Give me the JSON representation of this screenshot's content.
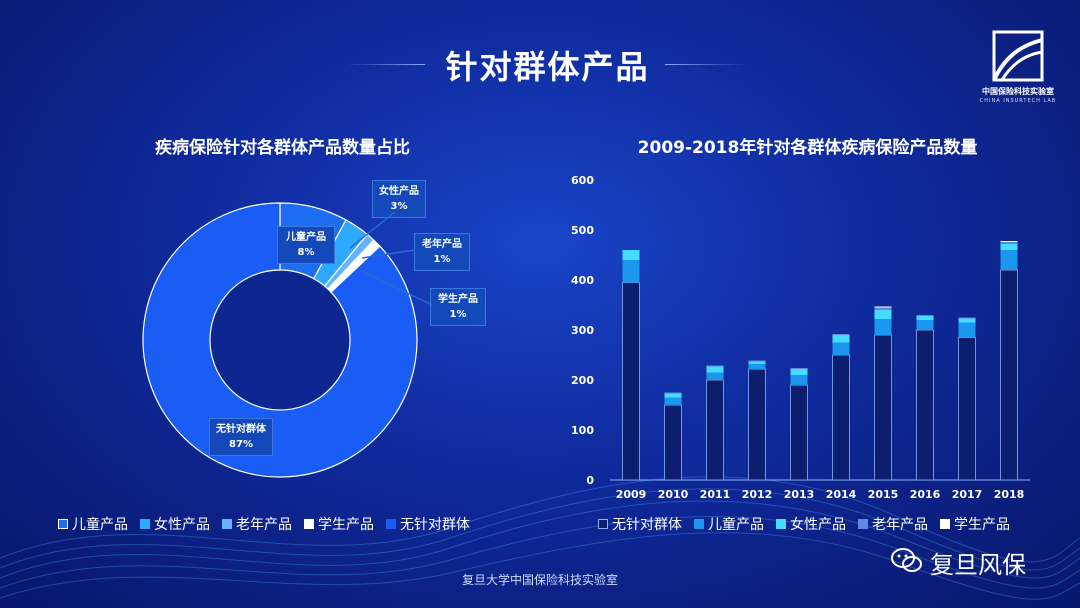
{
  "header": {
    "title": "针对群体产品"
  },
  "logo": {
    "text": "中国保险科技实验室",
    "subtext": "CHINA INSURTECH LAB"
  },
  "footer": {
    "text": "复旦大学中国保险科技实验室"
  },
  "wechat": {
    "account": "复旦风保"
  },
  "colors": {
    "background": "#0f2a9c",
    "children": "#1e6cf0",
    "women": "#2fa8ff",
    "elderly": "#66b2ff",
    "students": "#ffffff",
    "untargeted": "#1a5df5",
    "bar_untargeted": "#0c1e6e",
    "bar_children": "#1b97ee",
    "bar_women": "#45dcff",
    "bar_elderly": "#5f86e0",
    "bar_students": "#ffffff"
  },
  "chart_data": [
    {
      "type": "pie",
      "title": "疾病保险针对各群体产品数量占比",
      "categories": [
        "儿童产品",
        "女性产品",
        "老年产品",
        "学生产品",
        "无针对群体"
      ],
      "values": [
        8,
        3,
        1,
        1,
        87
      ],
      "data_labels": [
        "8%",
        "3%",
        "1%",
        "1%",
        "87%"
      ],
      "legend_position": "bottom"
    },
    {
      "type": "bar",
      "stacked": true,
      "title": "2009-2018年针对各群体疾病保险产品数量",
      "categories": [
        "2009",
        "2010",
        "2011",
        "2012",
        "2013",
        "2014",
        "2015",
        "2016",
        "2017",
        "2018"
      ],
      "series": [
        {
          "name": "无针对群体",
          "values": [
            395,
            150,
            200,
            222,
            190,
            250,
            290,
            300,
            285,
            420
          ]
        },
        {
          "name": "儿童产品",
          "values": [
            45,
            15,
            15,
            10,
            20,
            25,
            32,
            20,
            30,
            40
          ]
        },
        {
          "name": "女性产品",
          "values": [
            20,
            8,
            12,
            5,
            12,
            15,
            18,
            8,
            8,
            12
          ]
        },
        {
          "name": "老年产品",
          "values": [
            0,
            2,
            2,
            2,
            2,
            2,
            5,
            2,
            2,
            4
          ]
        },
        {
          "name": "学生产品",
          "values": [
            0,
            0,
            0,
            0,
            0,
            0,
            2,
            0,
            0,
            2
          ]
        }
      ],
      "ylim": [
        0,
        600
      ],
      "yticks": [
        "0",
        "100",
        "200",
        "300",
        "400",
        "500",
        "600"
      ],
      "grid": false,
      "legend_position": "bottom"
    }
  ]
}
